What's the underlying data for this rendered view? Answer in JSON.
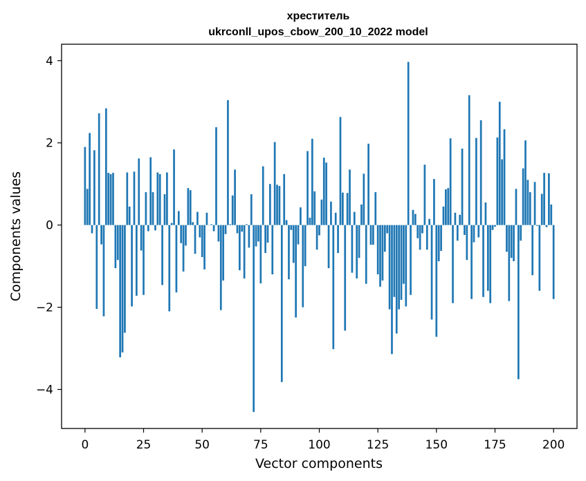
{
  "chart_data": {
    "type": "bar",
    "title_line1": "хреститель",
    "title_line2": "ukrconll_upos_cbow_200_10_2022 model",
    "xlabel": "Vector components",
    "ylabel": "Components values",
    "xlim": [
      -10,
      210
    ],
    "ylim": [
      -4.95,
      4.4
    ],
    "xticks": [
      0,
      25,
      50,
      75,
      100,
      125,
      150,
      175,
      200
    ],
    "yticks": [
      -4,
      -2,
      0,
      2,
      4
    ],
    "ytick_labels": [
      "−4",
      "−2",
      "0",
      "2",
      "4"
    ],
    "bar_color": "#1f77b4",
    "values": [
      1.9,
      0.88,
      2.24,
      -0.2,
      1.82,
      -2.04,
      2.72,
      -0.47,
      -2.22,
      2.84,
      1.27,
      1.24,
      1.27,
      -1.05,
      -0.85,
      -3.22,
      -3.1,
      -2.62,
      1.28,
      0.45,
      -1.98,
      1.3,
      -1.72,
      1.62,
      -0.62,
      -1.7,
      0.8,
      -0.15,
      1.65,
      0.8,
      -0.13,
      1.28,
      1.24,
      -1.46,
      0.75,
      1.28,
      -2.1,
      0.05,
      1.84,
      -1.64,
      0.34,
      -0.44,
      -1.13,
      -0.5,
      0.9,
      0.85,
      0.07,
      -0.7,
      0.32,
      -0.3,
      -0.78,
      -1.08,
      0.3,
      0.0,
      0.02,
      -0.15,
      2.38,
      -0.4,
      -2.07,
      -1.35,
      -0.22,
      3.04,
      0.02,
      0.72,
      1.35,
      -0.2,
      -1.1,
      -0.16,
      -1.3,
      0.02,
      -0.55,
      0.75,
      -4.55,
      -0.52,
      -0.4,
      -1.42,
      1.43,
      -0.68,
      -0.43,
      1.0,
      -1.2,
      2.02,
      0.98,
      0.95,
      -3.82,
      1.24,
      0.12,
      -1.32,
      -0.12,
      -0.92,
      -2.25,
      -0.47,
      0.43,
      -2.0,
      -1.0,
      1.8,
      0.18,
      2.1,
      0.82,
      -0.6,
      -0.25,
      0.62,
      1.64,
      1.52,
      -1.05,
      0.57,
      -3.02,
      0.3,
      -0.68,
      2.63,
      0.79,
      -2.57,
      0.78,
      1.35,
      -1.16,
      0.32,
      -1.3,
      -0.8,
      0.5,
      1.25,
      -1.43,
      1.98,
      -0.48,
      -0.48,
      0.8,
      -1.2,
      -1.5,
      -1.35,
      -0.65,
      -0.2,
      -2.05,
      -3.14,
      -1.75,
      -2.64,
      -2.05,
      -1.82,
      -1.43,
      -1.98,
      3.97,
      -1.7,
      0.37,
      0.27,
      -0.32,
      -0.6,
      -0.2,
      1.47,
      -0.6,
      0.15,
      -2.3,
      1.12,
      -2.72,
      -0.88,
      -0.63,
      0.45,
      0.87,
      0.9,
      2.11,
      -1.9,
      0.3,
      -0.38,
      0.25,
      1.86,
      -0.24,
      -0.85,
      3.16,
      -1.8,
      -0.42,
      2.12,
      -0.3,
      2.55,
      -1.75,
      0.55,
      -1.6,
      -1.9,
      -0.12,
      -0.04,
      2.13,
      3.0,
      1.6,
      2.33,
      -0.65,
      -1.85,
      -0.8,
      -0.88,
      0.88,
      -3.75,
      -0.38,
      1.38,
      2.06,
      1.1,
      0.8,
      -1.22,
      1.05,
      -0.02,
      -1.6,
      0.76,
      1.27,
      -0.05,
      1.26,
      0.5,
      -1.8
    ]
  }
}
